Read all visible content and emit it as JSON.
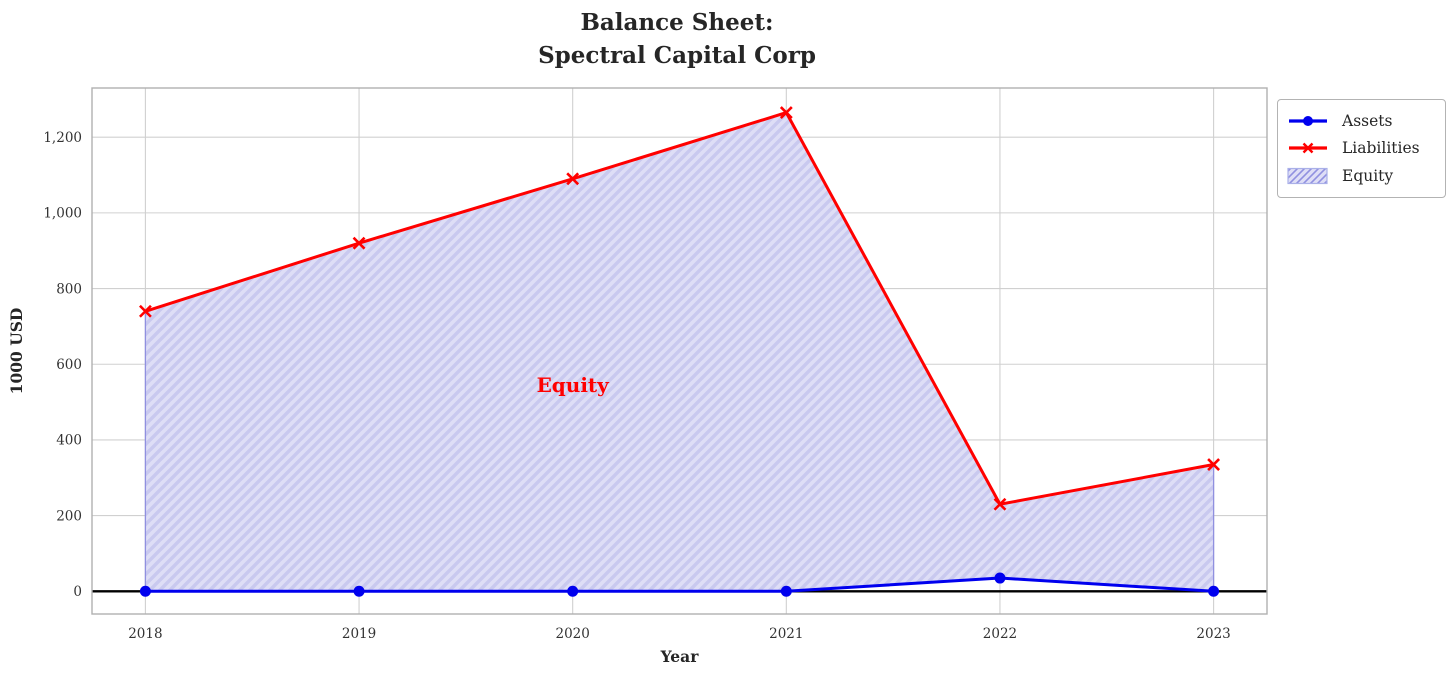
{
  "title": {
    "line1": "Balance Sheet:",
    "line2": "Spectral Capital Corp"
  },
  "chart_data": {
    "type": "line",
    "title": "Balance Sheet: Spectral Capital Corp",
    "xlabel": "Year",
    "ylabel": "1000 USD",
    "x": [
      2018,
      2019,
      2020,
      2021,
      2022,
      2023
    ],
    "xtick_labels": [
      "2018",
      "2019",
      "2020",
      "2021",
      "2022",
      "2023"
    ],
    "yticks": [
      0,
      200,
      400,
      600,
      800,
      1000,
      1200
    ],
    "ytick_labels": [
      "0",
      "200",
      "400",
      "600",
      "800",
      "1,000",
      "1,200"
    ],
    "xlim": [
      2017.75,
      2023.25
    ],
    "ylim": [
      -60,
      1330
    ],
    "grid": true,
    "zero_line": true,
    "series": [
      {
        "name": "Assets",
        "color": "#0000ee",
        "marker": "circle",
        "values": [
          0,
          0,
          0,
          0,
          35,
          0
        ]
      },
      {
        "name": "Liabilities",
        "color": "#ff0000",
        "marker": "x",
        "values": [
          740,
          920,
          1090,
          1265,
          230,
          335
        ]
      }
    ],
    "fill_between": {
      "name": "Equity",
      "lower": "Assets",
      "upper": "Liabilities",
      "facecolor": "#dedef6",
      "hatch": "///",
      "hatch_color": "#c9c9ef",
      "edge_color": "#9090e0"
    },
    "annotation": {
      "text": "Equity",
      "x": 2020,
      "y": 545,
      "color": "#ff0000"
    },
    "legend": {
      "position": "outside-top-right",
      "entries": [
        "Assets",
        "Liabilities",
        "Equity"
      ]
    }
  },
  "colors": {
    "grid": "#d0d0d0",
    "spine": "#b0b0b0",
    "zero_line": "#000000",
    "text": "#262626",
    "tick_text": "#333333"
  }
}
